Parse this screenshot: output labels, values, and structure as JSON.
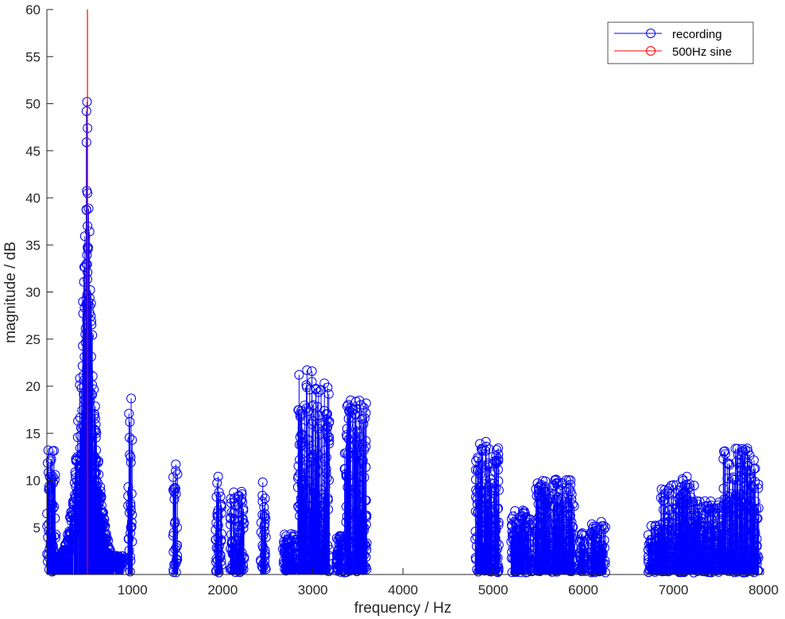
{
  "chart_data": {
    "type": "stem",
    "xlabel": "frequency / Hz",
    "ylabel": "magnitude / dB",
    "xlim": [
      50,
      8000
    ],
    "ylim": [
      0,
      60
    ],
    "xticks": [
      1000,
      2000,
      3000,
      4000,
      5000,
      6000,
      7000,
      8000
    ],
    "yticks": [
      5,
      10,
      15,
      20,
      25,
      30,
      35,
      40,
      45,
      50,
      55,
      60
    ],
    "grid": false,
    "legend_position": "top-right",
    "marker": "circle-open",
    "series": [
      {
        "name": "recording",
        "color": "#0000ff",
        "description": "dense stem plot of many spectral bins; principal groups listed below with peak magnitudes",
        "groups": [
          {
            "x_range": [
              50,
              150
            ],
            "peak_x": 65,
            "peak_y": 13.2
          },
          {
            "x_range": [
              150,
              900
            ],
            "peak_x": 495,
            "peak_y": 50.2
          },
          {
            "x_range": [
              950,
              1000
            ],
            "peak_x": 985,
            "peak_y": 18.7
          },
          {
            "x_range": [
              1450,
              1500
            ],
            "peak_x": 1480,
            "peak_y": 11.7
          },
          {
            "x_range": [
              1920,
              1990
            ],
            "peak_x": 1950,
            "peak_y": 10.4
          },
          {
            "x_range": [
              2080,
              2240
            ],
            "peak_x": 2210,
            "peak_y": 8.8
          },
          {
            "x_range": [
              2420,
              2480
            ],
            "peak_x": 2445,
            "peak_y": 9.8
          },
          {
            "x_range": [
              2660,
              2820
            ],
            "peak_x": 2760,
            "peak_y": 4.3
          },
          {
            "x_range": [
              2830,
              3190
            ],
            "peak_x": 2935,
            "peak_y": 21.7
          },
          {
            "x_range": [
              3260,
              3340
            ],
            "peak_x": 3300,
            "peak_y": 4.1
          },
          {
            "x_range": [
              3350,
              3600
            ],
            "peak_x": 3420,
            "peak_y": 18.5
          },
          {
            "x_range": [
              4800,
              5070
            ],
            "peak_x": 4920,
            "peak_y": 14.1
          },
          {
            "x_range": [
              5200,
              5430
            ],
            "peak_x": 5330,
            "peak_y": 6.8
          },
          {
            "x_range": [
              5450,
              5900
            ],
            "peak_x": 5700,
            "peak_y": 10.1
          },
          {
            "x_range": [
              5950,
              6020
            ],
            "peak_x": 5990,
            "peak_y": 4.4
          },
          {
            "x_range": [
              6080,
              6250
            ],
            "peak_x": 6200,
            "peak_y": 5.6
          },
          {
            "x_range": [
              6720,
              6850
            ],
            "peak_x": 6800,
            "peak_y": 5.2
          },
          {
            "x_range": [
              6850,
              7100
            ],
            "peak_x": 7000,
            "peak_y": 9.5
          },
          {
            "x_range": [
              7050,
              7250
            ],
            "peak_x": 7150,
            "peak_y": 10.4
          },
          {
            "x_range": [
              7250,
              7550
            ],
            "peak_x": 7350,
            "peak_y": 7.8
          },
          {
            "x_range": [
              7550,
              7950
            ],
            "peak_x": 7820,
            "peak_y": 13.4
          }
        ]
      },
      {
        "name": "500Hz sine",
        "color": "#ff0000",
        "points": [
          {
            "x": 500,
            "y": 60
          }
        ]
      }
    ]
  }
}
